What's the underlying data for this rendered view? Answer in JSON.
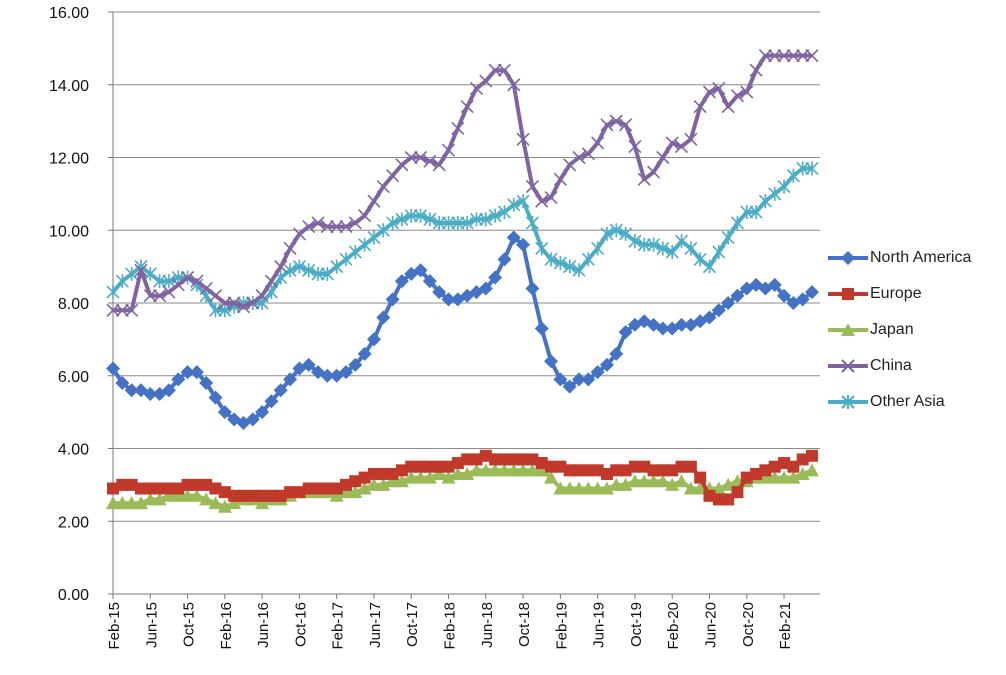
{
  "chart_data": {
    "type": "line",
    "title": "",
    "xlabel": "",
    "ylabel": "",
    "ylim": [
      0,
      16
    ],
    "yticks": [
      "0.00",
      "2.00",
      "4.00",
      "6.00",
      "8.00",
      "10.00",
      "12.00",
      "14.00",
      "16.00"
    ],
    "x": [
      "Feb-15",
      "Mar-15",
      "Apr-15",
      "May-15",
      "Jun-15",
      "Jul-15",
      "Aug-15",
      "Sep-15",
      "Oct-15",
      "Nov-15",
      "Dec-15",
      "Jan-16",
      "Feb-16",
      "Mar-16",
      "Apr-16",
      "May-16",
      "Jun-16",
      "Jul-16",
      "Aug-16",
      "Sep-16",
      "Oct-16",
      "Nov-16",
      "Dec-16",
      "Jan-17",
      "Feb-17",
      "Mar-17",
      "Apr-17",
      "May-17",
      "Jun-17",
      "Jul-17",
      "Aug-17",
      "Sep-17",
      "Oct-17",
      "Nov-17",
      "Dec-17",
      "Jan-18",
      "Feb-18",
      "Mar-18",
      "Apr-18",
      "May-18",
      "Jun-18",
      "Jul-18",
      "Aug-18",
      "Sep-18",
      "Oct-18",
      "Nov-18",
      "Dec-18",
      "Jan-19",
      "Feb-19",
      "Mar-19",
      "Apr-19",
      "May-19",
      "Jun-19",
      "Jul-19",
      "Aug-19",
      "Sep-19",
      "Oct-19",
      "Nov-19",
      "Dec-19",
      "Jan-20",
      "Feb-20",
      "Mar-20",
      "Apr-20",
      "May-20",
      "Jun-20",
      "Jul-20",
      "Aug-20",
      "Sep-20",
      "Oct-20",
      "Nov-20",
      "Dec-20",
      "Jan-21",
      "Feb-21",
      "Mar-21",
      "Apr-21",
      "May-21"
    ],
    "xtick_labels": [
      "Feb-15",
      "Jun-15",
      "Oct-15",
      "Feb-16",
      "Jun-16",
      "Oct-16",
      "Feb-17",
      "Jun-17",
      "Oct-17",
      "Feb-18",
      "Jun-18",
      "Oct-18",
      "Feb-19",
      "Jun-19",
      "Oct-19",
      "Feb-20",
      "Jun-20",
      "Oct-20",
      "Feb-21"
    ],
    "grid": "horizontal",
    "legend_position": "right",
    "series": [
      {
        "name": "North America",
        "color": "#4472C4",
        "marker": "diamond",
        "values": [
          6.2,
          5.8,
          5.6,
          5.6,
          5.5,
          5.5,
          5.6,
          5.9,
          6.1,
          6.1,
          5.8,
          5.4,
          5.0,
          4.8,
          4.7,
          4.8,
          5.0,
          5.3,
          5.6,
          5.9,
          6.2,
          6.3,
          6.1,
          6.0,
          6.0,
          6.1,
          6.3,
          6.6,
          7.0,
          7.6,
          8.1,
          8.6,
          8.8,
          8.9,
          8.6,
          8.3,
          8.1,
          8.1,
          8.2,
          8.3,
          8.4,
          8.7,
          9.2,
          9.8,
          9.6,
          8.4,
          7.3,
          6.4,
          5.9,
          5.7,
          5.9,
          5.9,
          6.1,
          6.3,
          6.6,
          7.2,
          7.4,
          7.5,
          7.4,
          7.3,
          7.3,
          7.4,
          7.4,
          7.5,
          7.6,
          7.8,
          8.0,
          8.2,
          8.4,
          8.5,
          8.4,
          8.5,
          8.2,
          8.0,
          8.1,
          8.3
        ]
      },
      {
        "name": "Europe",
        "color": "#C0392B",
        "marker": "square",
        "values": [
          2.9,
          3.0,
          3.0,
          2.9,
          2.9,
          2.9,
          2.9,
          2.9,
          3.0,
          3.0,
          3.0,
          2.9,
          2.8,
          2.7,
          2.7,
          2.7,
          2.7,
          2.7,
          2.7,
          2.8,
          2.8,
          2.9,
          2.9,
          2.9,
          2.9,
          3.0,
          3.1,
          3.2,
          3.3,
          3.3,
          3.3,
          3.4,
          3.5,
          3.5,
          3.5,
          3.5,
          3.5,
          3.6,
          3.7,
          3.7,
          3.8,
          3.7,
          3.7,
          3.7,
          3.7,
          3.7,
          3.6,
          3.5,
          3.5,
          3.4,
          3.4,
          3.4,
          3.4,
          3.3,
          3.4,
          3.4,
          3.5,
          3.5,
          3.4,
          3.4,
          3.4,
          3.5,
          3.5,
          3.2,
          2.7,
          2.6,
          2.6,
          2.8,
          3.2,
          3.3,
          3.4,
          3.5,
          3.6,
          3.5,
          3.7,
          3.8
        ]
      },
      {
        "name": "Japan",
        "color": "#9BBB59",
        "marker": "triangle",
        "values": [
          2.5,
          2.5,
          2.5,
          2.5,
          2.6,
          2.6,
          2.7,
          2.7,
          2.7,
          2.7,
          2.6,
          2.5,
          2.4,
          2.5,
          2.6,
          2.6,
          2.5,
          2.6,
          2.6,
          2.7,
          2.8,
          2.8,
          2.8,
          2.8,
          2.7,
          2.8,
          2.8,
          2.9,
          3.0,
          3.0,
          3.1,
          3.1,
          3.2,
          3.2,
          3.2,
          3.3,
          3.2,
          3.3,
          3.3,
          3.4,
          3.4,
          3.4,
          3.4,
          3.4,
          3.4,
          3.4,
          3.4,
          3.2,
          2.9,
          2.9,
          2.9,
          2.9,
          2.9,
          2.9,
          3.0,
          3.0,
          3.1,
          3.1,
          3.1,
          3.1,
          3.0,
          3.1,
          2.9,
          2.9,
          2.9,
          2.9,
          3.0,
          3.1,
          3.1,
          3.2,
          3.2,
          3.2,
          3.2,
          3.2,
          3.3,
          3.4
        ]
      },
      {
        "name": "China",
        "color": "#8064A2",
        "marker": "x",
        "values": [
          7.8,
          7.8,
          7.8,
          8.9,
          8.2,
          8.2,
          8.3,
          8.5,
          8.7,
          8.6,
          8.4,
          8.2,
          8.0,
          8.0,
          7.9,
          8.0,
          8.2,
          8.6,
          9.0,
          9.5,
          9.9,
          10.1,
          10.2,
          10.1,
          10.1,
          10.1,
          10.2,
          10.4,
          10.8,
          11.2,
          11.5,
          11.8,
          12.0,
          12.0,
          11.9,
          11.8,
          12.2,
          12.8,
          13.4,
          13.9,
          14.1,
          14.4,
          14.4,
          14.0,
          12.5,
          11.2,
          10.8,
          10.9,
          11.4,
          11.8,
          12.0,
          12.1,
          12.4,
          12.9,
          13.0,
          12.9,
          12.3,
          11.4,
          11.6,
          12.0,
          12.4,
          12.3,
          12.5,
          13.4,
          13.8,
          13.9,
          13.4,
          13.7,
          13.8,
          14.4,
          14.8,
          14.8,
          14.8,
          14.8,
          14.8,
          14.8
        ]
      },
      {
        "name": "Other Asia",
        "color": "#4BACC6",
        "marker": "star",
        "values": [
          8.3,
          8.6,
          8.8,
          9.0,
          8.8,
          8.6,
          8.6,
          8.7,
          8.7,
          8.5,
          8.2,
          7.8,
          7.8,
          7.9,
          8.0,
          8.0,
          8.0,
          8.3,
          8.7,
          8.9,
          9.0,
          8.9,
          8.8,
          8.8,
          9.0,
          9.2,
          9.4,
          9.6,
          9.8,
          10.0,
          10.2,
          10.3,
          10.4,
          10.4,
          10.3,
          10.2,
          10.2,
          10.2,
          10.2,
          10.3,
          10.3,
          10.4,
          10.5,
          10.7,
          10.8,
          10.2,
          9.5,
          9.2,
          9.1,
          9.0,
          8.9,
          9.2,
          9.5,
          9.9,
          10.0,
          9.9,
          9.7,
          9.6,
          9.6,
          9.5,
          9.4,
          9.7,
          9.5,
          9.2,
          9.0,
          9.4,
          9.8,
          10.2,
          10.5,
          10.5,
          10.8,
          11.0,
          11.2,
          11.5,
          11.7,
          11.7
        ]
      }
    ]
  }
}
